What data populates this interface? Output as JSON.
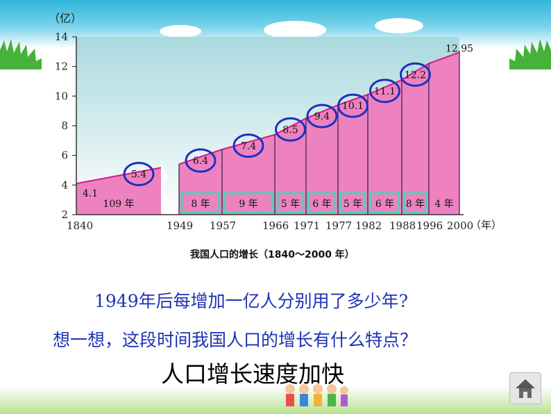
{
  "chart_data": {
    "type": "area",
    "ylabel": "（亿）",
    "xunit": "（年）",
    "ylim": [
      2,
      14
    ],
    "yticks": [
      2,
      4,
      6,
      8,
      10,
      12,
      14
    ],
    "x": [
      1840,
      1949,
      1957,
      1966,
      1971,
      1977,
      1982,
      1988,
      1996,
      2000
    ],
    "x_labels": [
      "1840",
      "1949",
      "1957",
      "1966",
      "1971",
      "1977",
      "1982",
      "1988",
      "1996",
      "2000"
    ],
    "values": [
      4.1,
      5.4,
      6.4,
      7.4,
      8.5,
      9.4,
      10.1,
      11.1,
      12.2,
      12.95
    ],
    "point_labels": [
      "4.1",
      "5.4",
      "6.4",
      "7.4",
      "8.5",
      "9.4",
      "10.1",
      "11.1",
      "12.2",
      "12.95"
    ],
    "circled_labels": [
      false,
      true,
      true,
      true,
      true,
      true,
      true,
      true,
      true,
      false
    ],
    "interval_labels": [
      "109 年",
      "8 年",
      "9 年",
      "5 年",
      "6 年",
      "5 年",
      "6 年",
      "8 年",
      "4 年"
    ],
    "boxed_intervals": [
      false,
      true,
      true,
      true,
      true,
      true,
      true,
      true,
      false
    ],
    "caption": "我国人口的增长（1840～2000 年）",
    "colors": {
      "fill": "#ee82c0",
      "line": "#d61880",
      "circle": "#1e2fbf",
      "box": "#4fd1b0",
      "bg_top": "#b5dfe3",
      "bg_bottom": "#ffffff"
    }
  },
  "text": {
    "question1": "1949年后每增加一亿人分别用了多少年?",
    "question2": "想一想，这段时间我国人口的增长有什么特点？",
    "answer": "人口增长速度加快"
  },
  "icons": {
    "home": "home-icon",
    "kids": "children-illustration",
    "grass": "grass-decoration"
  }
}
